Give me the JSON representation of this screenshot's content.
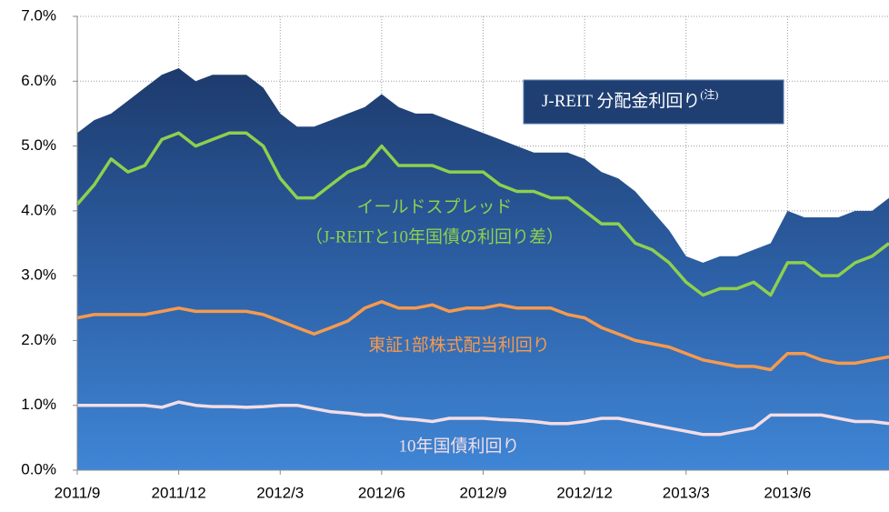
{
  "chart_data": {
    "type": "line",
    "categories": [
      "2011/9",
      null,
      null,
      null,
      null,
      null,
      "2011/12",
      null,
      null,
      null,
      null,
      null,
      "2012/3",
      null,
      null,
      null,
      null,
      null,
      "2012/6",
      null,
      null,
      null,
      null,
      null,
      "2012/9",
      null,
      null,
      null,
      null,
      null,
      "2012/12",
      null,
      null,
      null,
      null,
      null,
      "2013/3",
      null,
      null,
      null,
      null,
      null,
      "2013/6",
      null,
      null,
      null,
      null,
      null,
      null
    ],
    "ylim": [
      0,
      7
    ],
    "yticks": [
      {
        "value": 0,
        "label": "0.0%"
      },
      {
        "value": 1,
        "label": "1.0%"
      },
      {
        "value": 2,
        "label": "2.0%"
      },
      {
        "value": 3,
        "label": "3.0%"
      },
      {
        "value": 4,
        "label": "4.0%"
      },
      {
        "value": 5,
        "label": "5.0%"
      },
      {
        "value": 6,
        "label": "6.0%"
      },
      {
        "value": 7,
        "label": "7.0%"
      }
    ],
    "grid": true,
    "note": "(注)",
    "series": [
      {
        "name": "J-REIT 分配金利回り",
        "area": true,
        "color": "#1f3f73",
        "values": [
          5.2,
          5.4,
          5.5,
          5.7,
          5.9,
          6.1,
          6.2,
          6.0,
          6.1,
          6.1,
          6.1,
          5.9,
          5.5,
          5.3,
          5.3,
          5.4,
          5.5,
          5.6,
          5.8,
          5.6,
          5.5,
          5.5,
          5.4,
          5.3,
          5.2,
          5.1,
          5.0,
          4.9,
          4.9,
          4.9,
          4.8,
          4.6,
          4.5,
          4.3,
          4.0,
          3.7,
          3.3,
          3.2,
          3.3,
          3.3,
          3.4,
          3.5,
          4.0,
          3.9,
          3.9,
          3.9,
          4.0,
          4.0,
          4.2
        ]
      },
      {
        "name": "イールドスプレッド",
        "subtitle": "（J-REITと10年国債の利回り差）",
        "color": "#8ed04e",
        "values": [
          4.1,
          4.4,
          4.8,
          4.6,
          4.7,
          5.1,
          5.2,
          5.0,
          5.1,
          5.2,
          5.2,
          5.0,
          4.5,
          4.2,
          4.2,
          4.4,
          4.6,
          4.7,
          5.0,
          4.7,
          4.7,
          4.7,
          4.6,
          4.6,
          4.6,
          4.4,
          4.3,
          4.3,
          4.2,
          4.2,
          4.0,
          3.8,
          3.8,
          3.5,
          3.4,
          3.2,
          2.9,
          2.7,
          2.8,
          2.8,
          2.9,
          2.7,
          3.2,
          3.2,
          3.0,
          3.0,
          3.2,
          3.3,
          3.5
        ]
      },
      {
        "name": "東証1部株式配当利回り",
        "color": "#f59a4f",
        "values": [
          2.35,
          2.4,
          2.4,
          2.4,
          2.4,
          2.45,
          2.5,
          2.45,
          2.45,
          2.45,
          2.45,
          2.4,
          2.3,
          2.2,
          2.1,
          2.2,
          2.3,
          2.5,
          2.6,
          2.5,
          2.5,
          2.55,
          2.45,
          2.5,
          2.5,
          2.55,
          2.5,
          2.5,
          2.5,
          2.4,
          2.35,
          2.2,
          2.1,
          2.0,
          1.95,
          1.9,
          1.8,
          1.7,
          1.65,
          1.6,
          1.6,
          1.55,
          1.8,
          1.8,
          1.7,
          1.65,
          1.65,
          1.7,
          1.75
        ]
      },
      {
        "name": "10年国債利回り",
        "color": "#f3dde4",
        "values": [
          1.0,
          1.0,
          1.0,
          1.0,
          1.0,
          0.97,
          1.05,
          1.0,
          0.98,
          0.98,
          0.97,
          0.98,
          1.0,
          1.0,
          0.95,
          0.9,
          0.88,
          0.85,
          0.85,
          0.8,
          0.78,
          0.75,
          0.8,
          0.8,
          0.8,
          0.78,
          0.77,
          0.75,
          0.72,
          0.72,
          0.75,
          0.8,
          0.8,
          0.75,
          0.7,
          0.65,
          0.6,
          0.55,
          0.55,
          0.6,
          0.65,
          0.85,
          0.85,
          0.85,
          0.85,
          0.8,
          0.75,
          0.75,
          0.72
        ]
      }
    ]
  }
}
